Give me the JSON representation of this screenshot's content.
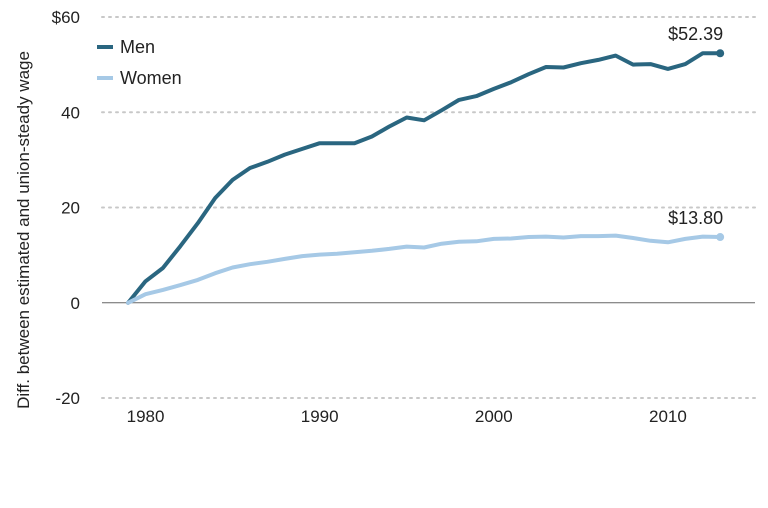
{
  "chart_data": {
    "type": "line",
    "ylabel": "Diff. between estimated and union-steady wage",
    "ylim": [
      -20,
      60
    ],
    "xlim": [
      1977.5,
      2015
    ],
    "y_ticks": [
      {
        "value": 60,
        "label": "$60"
      },
      {
        "value": 40,
        "label": "40"
      },
      {
        "value": 20,
        "label": "20"
      },
      {
        "value": 0,
        "label": "0"
      },
      {
        "value": -20,
        "label": "-20"
      }
    ],
    "x_ticks": [
      {
        "value": 1980,
        "label": "1980"
      },
      {
        "value": 1990,
        "label": "1990"
      },
      {
        "value": 2000,
        "label": "2000"
      },
      {
        "value": 2010,
        "label": "2010"
      }
    ],
    "grid": "horizontal dotted",
    "legend_position": "top-left",
    "series": [
      {
        "name": "Men",
        "color": "#2a6680",
        "end_label": "$52.39",
        "x": [
          1979,
          1980,
          1981,
          1982,
          1983,
          1984,
          1985,
          1986,
          1987,
          1988,
          1989,
          1990,
          1991,
          1992,
          1993,
          1994,
          1995,
          1996,
          1997,
          1998,
          1999,
          2000,
          2001,
          2002,
          2003,
          2004,
          2005,
          2006,
          2007,
          2008,
          2009,
          2010,
          2011,
          2012,
          2013
        ],
        "values": [
          0,
          4.5,
          7.3,
          11.9,
          16.7,
          22,
          25.8,
          28.3,
          29.6,
          31.1,
          32.3,
          33.5,
          33.5,
          33.5,
          34.9,
          37,
          38.9,
          38.3,
          40.4,
          42.6,
          43.4,
          44.9,
          46.3,
          48,
          49.5,
          49.4,
          50.3,
          51,
          51.9,
          50,
          50.1,
          49.1,
          50.1,
          52.4,
          52.39
        ]
      },
      {
        "name": "Women",
        "color": "#a6c9e6",
        "end_label": "$13.80",
        "x": [
          1979,
          1980,
          1981,
          1982,
          1983,
          1984,
          1985,
          1986,
          1987,
          1988,
          1989,
          1990,
          1991,
          1992,
          1993,
          1994,
          1995,
          1996,
          1997,
          1998,
          1999,
          2000,
          2001,
          2002,
          2003,
          2004,
          2005,
          2006,
          2007,
          2008,
          2009,
          2010,
          2011,
          2012,
          2013
        ],
        "values": [
          0,
          1.8,
          2.7,
          3.7,
          4.8,
          6.2,
          7.4,
          8.1,
          8.6,
          9.2,
          9.8,
          10.1,
          10.3,
          10.6,
          10.9,
          11.3,
          11.8,
          11.6,
          12.4,
          12.8,
          12.9,
          13.4,
          13.5,
          13.8,
          13.9,
          13.7,
          14.0,
          14.0,
          14.1,
          13.6,
          13.0,
          12.7,
          13.4,
          13.9,
          13.8
        ]
      }
    ]
  }
}
